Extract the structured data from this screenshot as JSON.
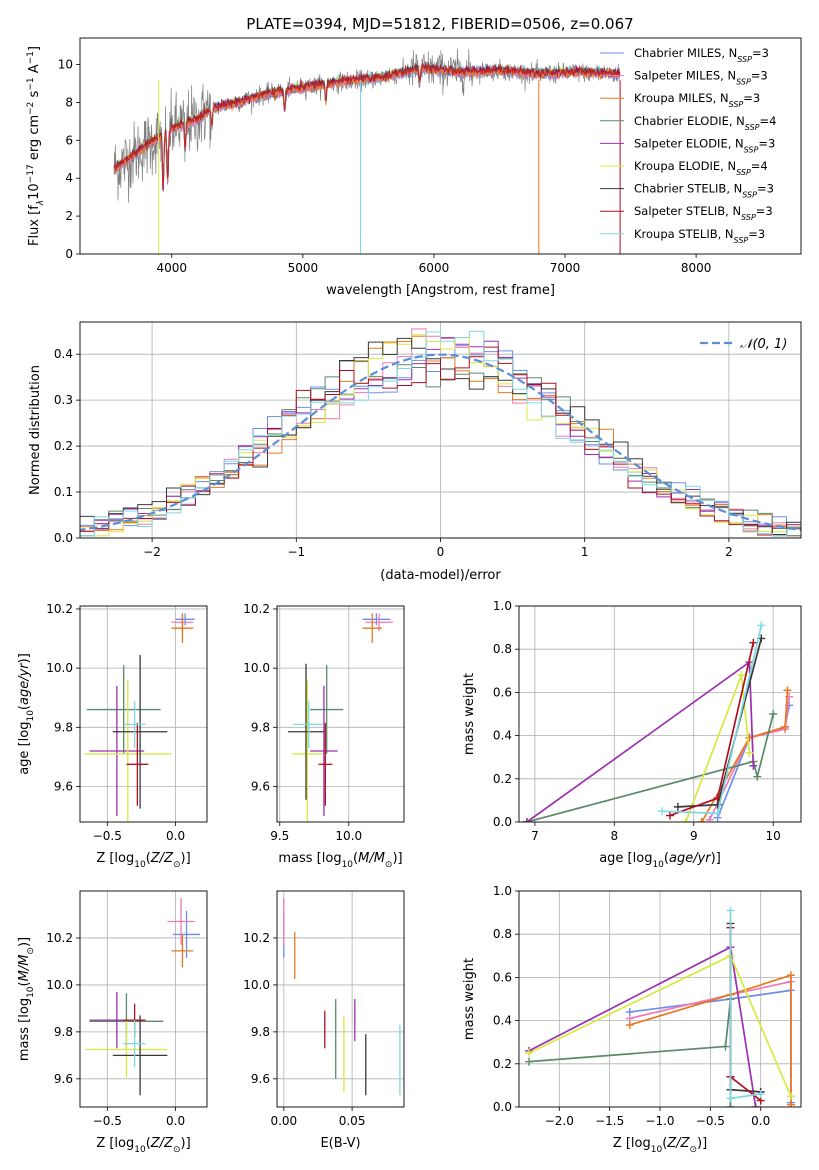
{
  "figure_title": "PLATE=0394, MJD=51812, FIBERID=0506, z=0.067",
  "legend_spectrum": [
    {
      "label": "Chabrier MILES, N",
      "sub": "SSP",
      "val": "=3",
      "color": "#6b8fe8"
    },
    {
      "label": "Salpeter MILES, N",
      "sub": "SSP",
      "val": "=3",
      "color": "#f07ab8"
    },
    {
      "label": "Kroupa MILES, N",
      "sub": "SSP",
      "val": "=3",
      "color": "#e87820"
    },
    {
      "label": "Chabrier ELODIE, N",
      "sub": "SSP",
      "val": "=4",
      "color": "#5a8a6a"
    },
    {
      "label": "Salpeter ELODIE, N",
      "sub": "SSP",
      "val": "=3",
      "color": "#9c30b0"
    },
    {
      "label": "Kroupa ELODIE, N",
      "sub": "SSP",
      "val": "=4",
      "color": "#d8e840"
    },
    {
      "label": "Chabrier STELIB, N",
      "sub": "SSP",
      "val": "=3",
      "color": "#3a3a3a"
    },
    {
      "label": "Salpeter STELIB, N",
      "sub": "SSP",
      "val": "=3",
      "color": "#b01020"
    },
    {
      "label": "Kroupa STELIB, N",
      "sub": "SSP",
      "val": "=3",
      "color": "#7fd8e0"
    }
  ],
  "colors": {
    "data": "#808080",
    "gauss": "#5b8ed6",
    "grid": "#b0b0b0"
  },
  "chart_data": [
    {
      "id": "spectrum",
      "type": "line",
      "xlabel": "wavelength [Angstrom, rest frame]",
      "ylabel": "Flux [f",
      "ylabel_parts": [
        "λ",
        "10",
        "−17",
        " erg cm",
        "−2",
        " s",
        "−1",
        " A",
        "−1",
        "]"
      ],
      "xlim": [
        3300,
        8800
      ],
      "ylim": [
        0,
        11.4
      ],
      "xticks": [
        4000,
        5000,
        6000,
        7000,
        8000
      ],
      "yticks": [
        0,
        2,
        4,
        6,
        8,
        10
      ],
      "continuum": {
        "x": [
          3560,
          3650,
          3800,
          4000,
          4100,
          4200,
          4300,
          4500,
          4700,
          5000,
          5300,
          5600,
          5900,
          6200,
          6500,
          6800,
          7100,
          7400
        ],
        "y": [
          4.5,
          4.9,
          5.7,
          6.6,
          6.9,
          7.1,
          7.7,
          8.0,
          8.4,
          8.8,
          9.1,
          9.3,
          9.8,
          9.6,
          9.7,
          9.5,
          9.6,
          9.5
        ]
      }
    },
    {
      "id": "residuals",
      "type": "line",
      "xlabel": "(data-model)/error",
      "ylabel": "Normed distribution",
      "xlim": [
        -2.5,
        2.5
      ],
      "ylim": [
        0,
        0.47
      ],
      "xticks": [
        -2,
        -1,
        0,
        1,
        2
      ],
      "xtick_labels": [
        "−2",
        "−1",
        "0",
        "1",
        "2"
      ],
      "yticks": [
        0,
        0.1,
        0.2,
        0.3,
        0.4
      ],
      "ytick_labels": [
        "0.0",
        "0.1",
        "0.2",
        "0.3",
        "0.4"
      ],
      "legend": "𝒩(0, 1)",
      "bin_width": 0.1,
      "mean": 0,
      "sigma": 1
    },
    {
      "id": "age_vs_Z",
      "type": "scatter",
      "xlabel": "Z [log",
      "xlabel_sub": "10",
      "xlabel_rest": "(Z/Z",
      "ylabel": "age  [log",
      "ylabel_sub": "10",
      "ylabel_rest": "(age/yr)]",
      "xlim": [
        -0.7,
        0.23
      ],
      "ylim": [
        9.48,
        10.21
      ],
      "xticks": [
        -0.5,
        0.0
      ],
      "xtick_labels": [
        "−0.5",
        "0.0"
      ],
      "yticks": [
        9.6,
        9.8,
        10.0,
        10.2
      ],
      "ytick_labels": [
        "9.6",
        "9.8",
        "10.0",
        "10.2"
      ],
      "points": [
        {
          "x": 0.07,
          "y": 10.165,
          "xe": 0.07,
          "ye": 0.02,
          "c": 0
        },
        {
          "x": 0.05,
          "y": 10.155,
          "xe": 0.08,
          "ye": 0.03,
          "c": 1
        },
        {
          "x": 0.05,
          "y": 10.135,
          "xe": 0.08,
          "ye": 0.05,
          "c": 2
        },
        {
          "x": -0.38,
          "y": 9.86,
          "xe": 0.27,
          "ye": 0.15,
          "c": 3
        },
        {
          "x": -0.43,
          "y": 9.72,
          "xe": 0.2,
          "ye": 0.22,
          "c": 4
        },
        {
          "x": -0.35,
          "y": 9.71,
          "xe": 0.32,
          "ye": 0.25,
          "c": 5
        },
        {
          "x": -0.26,
          "y": 9.785,
          "xe": 0.2,
          "ye": 0.26,
          "c": 6
        },
        {
          "x": -0.28,
          "y": 9.675,
          "xe": 0.08,
          "ye": 0.14,
          "c": 7
        },
        {
          "x": -0.3,
          "y": 9.81,
          "xe": 0.08,
          "ye": 0.08,
          "c": 8
        }
      ]
    },
    {
      "id": "age_vs_mass",
      "type": "scatter",
      "xlabel": "mass [log",
      "xlabel_sub": "10",
      "xlabel_rest": "(M/M",
      "xlim": [
        9.48,
        10.4
      ],
      "ylim": [
        9.48,
        10.21
      ],
      "xticks": [
        9.5,
        10.0
      ],
      "xtick_labels": [
        "9.5",
        "10.0"
      ],
      "yticks": [
        9.6,
        9.8,
        10.0,
        10.2
      ],
      "ytick_labels": [
        "9.6",
        "9.8",
        "10.0",
        "10.2"
      ],
      "points": [
        {
          "x": 10.2,
          "y": 10.165,
          "xe": 0.1,
          "ye": 0.02,
          "c": 0
        },
        {
          "x": 10.22,
          "y": 10.155,
          "xe": 0.1,
          "ye": 0.03,
          "c": 1
        },
        {
          "x": 10.17,
          "y": 10.135,
          "xe": 0.07,
          "ye": 0.05,
          "c": 2
        },
        {
          "x": 9.84,
          "y": 9.86,
          "xe": 0.12,
          "ye": 0.15,
          "c": 3
        },
        {
          "x": 9.82,
          "y": 9.72,
          "xe": 0.1,
          "ye": 0.22,
          "c": 4
        },
        {
          "x": 9.7,
          "y": 9.71,
          "xe": 0.11,
          "ye": 0.25,
          "c": 5
        },
        {
          "x": 9.69,
          "y": 9.785,
          "xe": 0.13,
          "ye": 0.23,
          "c": 6
        },
        {
          "x": 9.83,
          "y": 9.675,
          "xe": 0.05,
          "ye": 0.14,
          "c": 7
        },
        {
          "x": 9.71,
          "y": 9.81,
          "xe": 0.11,
          "ye": 0.08,
          "c": 8
        }
      ]
    },
    {
      "id": "mass_weight_vs_age",
      "type": "line",
      "xlabel": "age  [log",
      "xlabel_sub": "10",
      "xlabel_rest": "(age/yr)]",
      "ylabel": "mass weight",
      "xlim": [
        6.8,
        10.35
      ],
      "ylim": [
        0,
        1
      ],
      "xticks": [
        7,
        8,
        9,
        10
      ],
      "xtick_labels": [
        "7",
        "8",
        "9",
        "10"
      ],
      "yticks": [
        0,
        0.2,
        0.4,
        0.6,
        0.8,
        1.0
      ],
      "ytick_labels": [
        "0.0",
        "0.2",
        "0.4",
        "0.6",
        "0.8",
        "1.0"
      ],
      "series": [
        {
          "c": 0,
          "x": [
            9.3,
            9.7,
            10.15,
            10.2
          ],
          "y": [
            0.02,
            0.39,
            0.44,
            0.54
          ]
        },
        {
          "c": 1,
          "x": [
            9.2,
            9.7,
            10.15,
            10.2
          ],
          "y": [
            0.01,
            0.39,
            0.43,
            0.58
          ]
        },
        {
          "c": 2,
          "x": [
            9.1,
            9.7,
            10.15,
            10.18
          ],
          "y": [
            0.0,
            0.39,
            0.44,
            0.61
          ]
        },
        {
          "c": 3,
          "x": [
            6.9,
            9.75,
            9.8,
            10.0
          ],
          "y": [
            0.0,
            0.28,
            0.21,
            0.5
          ]
        },
        {
          "c": 4,
          "x": [
            6.9,
            9.7,
            9.75
          ],
          "y": [
            0.0,
            0.74,
            0.26
          ]
        },
        {
          "c": 5,
          "x": [
            8.9,
            9.6,
            9.7
          ],
          "y": [
            0.0,
            0.68,
            0.32
          ]
        },
        {
          "c": 6,
          "x": [
            8.8,
            9.3,
            9.85
          ],
          "y": [
            0.07,
            0.08,
            0.85
          ]
        },
        {
          "c": 7,
          "x": [
            8.7,
            9.3,
            9.75
          ],
          "y": [
            0.03,
            0.11,
            0.83
          ]
        },
        {
          "c": 8,
          "x": [
            8.6,
            9.3,
            9.85
          ],
          "y": [
            0.05,
            0.04,
            0.91
          ]
        }
      ]
    },
    {
      "id": "mass_vs_Z",
      "type": "scatter",
      "xlabel": "Z [log",
      "xlabel_sub": "10",
      "xlabel_rest": "(Z/Z",
      "ylabel": "mass [log",
      "ylabel_sub": "10",
      "ylabel_rest": "(M/M",
      "xlim": [
        -0.7,
        0.23
      ],
      "ylim": [
        9.48,
        10.4
      ],
      "xticks": [
        -0.5,
        0.0
      ],
      "xtick_labels": [
        "−0.5",
        "0.0"
      ],
      "yticks": [
        9.6,
        9.8,
        10.0,
        10.2
      ],
      "ytick_labels": [
        "9.6",
        "9.8",
        "10.0",
        "10.2"
      ],
      "points": [
        {
          "x": 0.08,
          "y": 10.215,
          "xe": 0.1,
          "ye": 0.1,
          "c": 0
        },
        {
          "x": 0.04,
          "y": 10.27,
          "xe": 0.1,
          "ye": 0.1,
          "c": 1
        },
        {
          "x": 0.05,
          "y": 10.145,
          "xe": 0.08,
          "ye": 0.07,
          "c": 2
        },
        {
          "x": -0.36,
          "y": 9.845,
          "xe": 0.27,
          "ye": 0.12,
          "c": 3
        },
        {
          "x": -0.43,
          "y": 9.85,
          "xe": 0.2,
          "ye": 0.12,
          "c": 4
        },
        {
          "x": -0.36,
          "y": 9.725,
          "xe": 0.3,
          "ye": 0.12,
          "c": 5
        },
        {
          "x": -0.26,
          "y": 9.7,
          "xe": 0.2,
          "ye": 0.17,
          "c": 6
        },
        {
          "x": -0.3,
          "y": 9.85,
          "xe": 0.08,
          "ye": 0.07,
          "c": 7
        },
        {
          "x": -0.3,
          "y": 9.75,
          "xe": 0.08,
          "ye": 0.1,
          "c": 8
        }
      ]
    },
    {
      "id": "mass_vs_EBV",
      "type": "scatter",
      "xlabel": "E(B-V)",
      "xlim": [
        -0.005,
        0.088
      ],
      "ylim": [
        9.48,
        10.4
      ],
      "xticks": [
        0.0,
        0.05
      ],
      "xtick_labels": [
        "0.00",
        "0.05"
      ],
      "yticks": [
        9.6,
        9.8,
        10.0,
        10.2
      ],
      "ytick_labels": [
        "9.6",
        "9.8",
        "10.0",
        "10.2"
      ],
      "points": [
        {
          "x": 0.0,
          "y": 10.215,
          "ye": 0.1,
          "c": 0
        },
        {
          "x": 0.0,
          "y": 10.27,
          "ye": 0.1,
          "c": 1
        },
        {
          "x": 0.008,
          "y": 10.125,
          "ye": 0.1,
          "c": 2
        },
        {
          "x": 0.038,
          "y": 9.77,
          "ye": 0.17,
          "c": 3
        },
        {
          "x": 0.052,
          "y": 9.85,
          "ye": 0.09,
          "c": 4
        },
        {
          "x": 0.044,
          "y": 9.705,
          "ye": 0.16,
          "c": 5
        },
        {
          "x": 0.06,
          "y": 9.66,
          "ye": 0.13,
          "c": 6
        },
        {
          "x": 0.03,
          "y": 9.81,
          "ye": 0.08,
          "c": 7
        },
        {
          "x": 0.085,
          "y": 9.68,
          "ye": 0.15,
          "c": 8
        }
      ]
    },
    {
      "id": "mass_weight_vs_Z",
      "type": "line",
      "xlabel": "Z [log",
      "xlabel_sub": "10",
      "xlabel_rest": "(Z/Z",
      "ylabel": "mass weight",
      "xlim": [
        -2.4,
        0.4
      ],
      "ylim": [
        0,
        1
      ],
      "xticks": [
        -2.0,
        -1.5,
        -1.0,
        -0.5,
        0.0
      ],
      "xtick_labels": [
        "−2.0",
        "−1.5",
        "−1.0",
        "−0.5",
        "0.0"
      ],
      "yticks": [
        0,
        0.2,
        0.4,
        0.6,
        0.8,
        1.0
      ],
      "ytick_labels": [
        "0.0",
        "0.2",
        "0.4",
        "0.6",
        "0.8",
        "1.0"
      ],
      "series": [
        {
          "c": 0,
          "x": [
            -1.3,
            -0.3,
            0.3,
            0.3
          ],
          "y": [
            0.44,
            0.5,
            0.54,
            0.02
          ]
        },
        {
          "c": 1,
          "x": [
            -1.3,
            -0.3,
            0.3,
            0.3
          ],
          "y": [
            0.41,
            0.52,
            0.58,
            0.01
          ]
        },
        {
          "c": 2,
          "x": [
            -1.3,
            -0.3,
            0.3,
            0.3
          ],
          "y": [
            0.38,
            0.52,
            0.61,
            0.01
          ]
        },
        {
          "c": 3,
          "x": [
            -2.3,
            -0.35,
            -0.3,
            -0.3
          ],
          "y": [
            0.21,
            0.28,
            0.5,
            0.0
          ]
        },
        {
          "c": 4,
          "x": [
            -2.3,
            -0.3,
            -0.05
          ],
          "y": [
            0.26,
            0.74,
            0.0
          ]
        },
        {
          "c": 5,
          "x": [
            -2.3,
            -0.3,
            0.3
          ],
          "y": [
            0.25,
            0.7,
            0.05
          ]
        },
        {
          "c": 6,
          "x": [
            -0.3,
            -0.3,
            0.0
          ],
          "y": [
            0.85,
            0.08,
            0.07
          ]
        },
        {
          "c": 7,
          "x": [
            -0.3,
            -0.3,
            0.0
          ],
          "y": [
            0.83,
            0.14,
            0.03
          ]
        },
        {
          "c": 8,
          "x": [
            -0.3,
            -0.3,
            0.0
          ],
          "y": [
            0.91,
            0.04,
            0.06
          ]
        }
      ]
    }
  ]
}
